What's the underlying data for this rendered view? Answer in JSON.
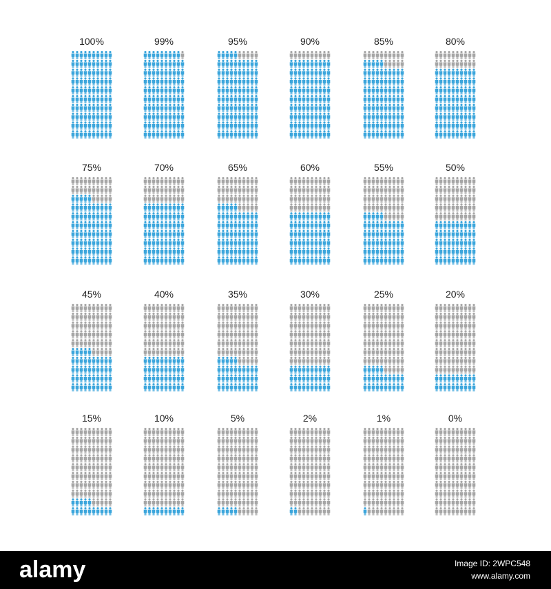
{
  "panels": [
    {
      "label": "100%",
      "value": 100
    },
    {
      "label": "99%",
      "value": 99
    },
    {
      "label": "95%",
      "value": 95
    },
    {
      "label": "90%",
      "value": 90
    },
    {
      "label": "85%",
      "value": 85
    },
    {
      "label": "80%",
      "value": 80
    },
    {
      "label": "75%",
      "value": 75
    },
    {
      "label": "70%",
      "value": 70
    },
    {
      "label": "65%",
      "value": 65
    },
    {
      "label": "60%",
      "value": 60
    },
    {
      "label": "55%",
      "value": 55
    },
    {
      "label": "50%",
      "value": 50
    },
    {
      "label": "45%",
      "value": 45
    },
    {
      "label": "40%",
      "value": 40
    },
    {
      "label": "35%",
      "value": 35
    },
    {
      "label": "30%",
      "value": 30
    },
    {
      "label": "25%",
      "value": 25
    },
    {
      "label": "20%",
      "value": 20
    },
    {
      "label": "15%",
      "value": 15
    },
    {
      "label": "10%",
      "value": 10
    },
    {
      "label": "5%",
      "value": 5
    },
    {
      "label": "2%",
      "value": 2
    },
    {
      "label": "1%",
      "value": 1
    },
    {
      "label": "0%",
      "value": 0
    }
  ],
  "footer": {
    "brand": "alamy",
    "image_id": "Image ID: 2WPC548",
    "url": "www.alamy.com"
  }
}
